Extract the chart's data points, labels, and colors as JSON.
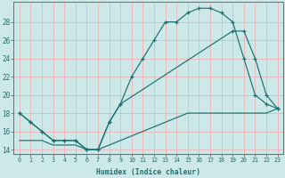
{
  "xlabel": "Humidex (Indice chaleur)",
  "bg_color": "#cce8e8",
  "line_color": "#1a7070",
  "grid_color": "#f5aaaa",
  "xlim": [
    -0.5,
    23.5
  ],
  "ylim": [
    13.5,
    30.2
  ],
  "x_ticks": [
    0,
    1,
    2,
    3,
    4,
    5,
    6,
    7,
    8,
    9,
    10,
    11,
    12,
    13,
    14,
    15,
    16,
    17,
    18,
    19,
    20,
    21,
    22,
    23
  ],
  "y_ticks": [
    14,
    16,
    18,
    20,
    22,
    24,
    26,
    28
  ],
  "line1_x": [
    0,
    1,
    2,
    3,
    4,
    5,
    6,
    7,
    8,
    9,
    10,
    11,
    12,
    13,
    14,
    15,
    16,
    17,
    18,
    19,
    20,
    21,
    22,
    23
  ],
  "line1_y": [
    18,
    17,
    16,
    15,
    15,
    15,
    14,
    14,
    17,
    19,
    22,
    24,
    26,
    28,
    28,
    29,
    29.5,
    29.5,
    29,
    28,
    24,
    20,
    19,
    18.5
  ],
  "line2_x": [
    0,
    1,
    2,
    3,
    4,
    5,
    6,
    7,
    8,
    9,
    10,
    11,
    12,
    13,
    14,
    15,
    16,
    17,
    18,
    19,
    20,
    21,
    22,
    23
  ],
  "line2_y": [
    15,
    15,
    15,
    14.5,
    14.5,
    14.5,
    14,
    14,
    14.5,
    15,
    15.5,
    16,
    16.5,
    17,
    17.5,
    18,
    18,
    18,
    18,
    18,
    18,
    18,
    18,
    18.5
  ],
  "line3_x": [
    0,
    1,
    2,
    3,
    4,
    5,
    6,
    7,
    8,
    9,
    19,
    20,
    21,
    22,
    23
  ],
  "line3_y": [
    18,
    17,
    16,
    15,
    15,
    15,
    14,
    14,
    17,
    19,
    27,
    27,
    24,
    20,
    18.5
  ]
}
